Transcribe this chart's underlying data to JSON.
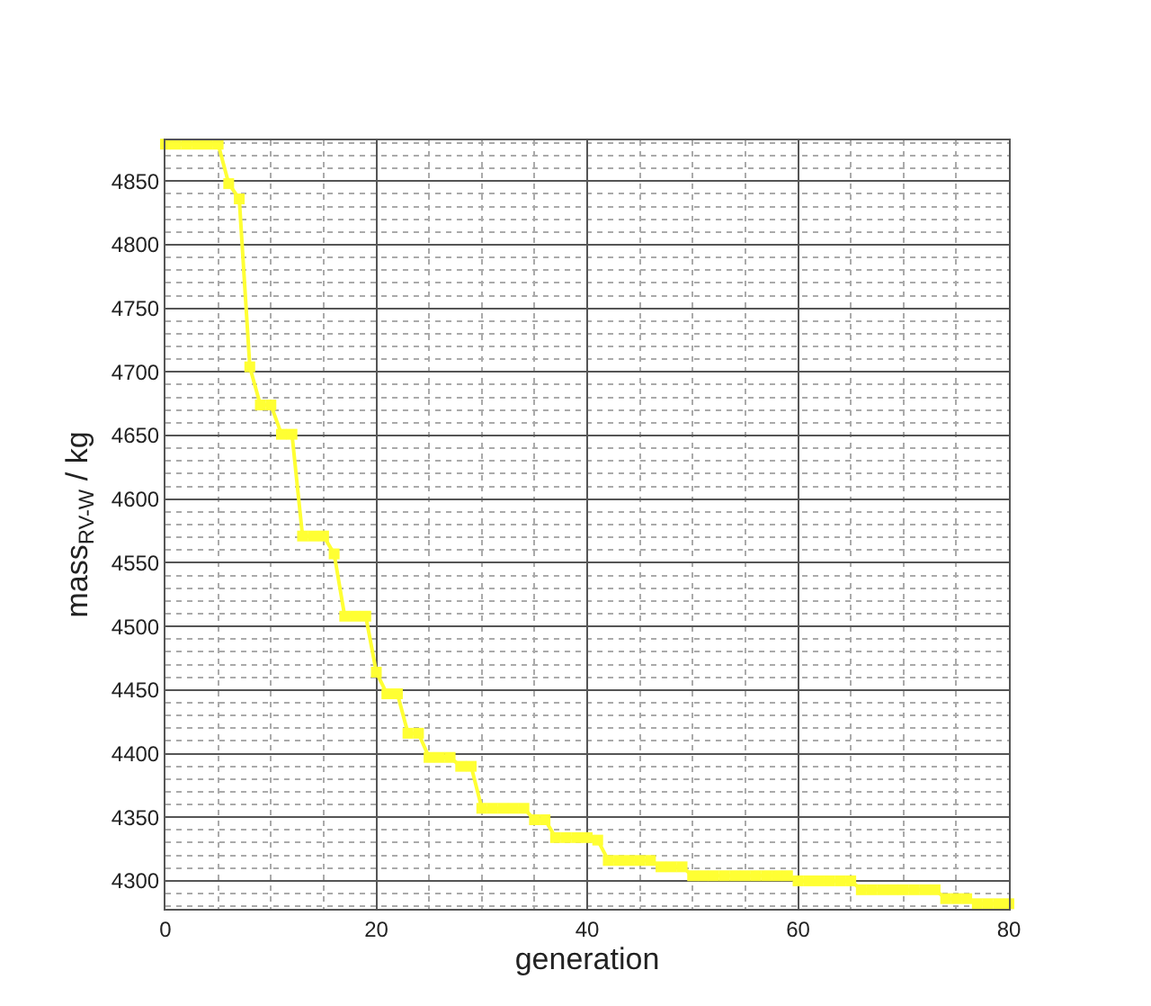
{
  "chart_data": {
    "type": "line",
    "xlabel": "generation",
    "ylabel": "mass$_{RV-W}$ / kg",
    "x": [
      0,
      1,
      2,
      3,
      4,
      5,
      6,
      7,
      8,
      9,
      10,
      11,
      12,
      13,
      14,
      15,
      16,
      17,
      18,
      19,
      20,
      21,
      22,
      23,
      24,
      25,
      26,
      27,
      28,
      29,
      30,
      31,
      32,
      33,
      34,
      35,
      36,
      37,
      38,
      39,
      40,
      41,
      42,
      43,
      44,
      45,
      46,
      47,
      48,
      49,
      50,
      51,
      52,
      53,
      54,
      55,
      56,
      57,
      58,
      59,
      60,
      61,
      62,
      63,
      64,
      65,
      66,
      67,
      68,
      69,
      70,
      71,
      72,
      73,
      74,
      75,
      76,
      77,
      78,
      79,
      80
    ],
    "series": [
      {
        "color": "#ffff33",
        "values": [
          4879,
          4879,
          4879,
          4879,
          4879,
          4879,
          4848,
          4836,
          4704,
          4674,
          4674,
          4651,
          4651,
          4571,
          4571,
          4571,
          4557,
          4508,
          4508,
          4508,
          4464,
          4447,
          4447,
          4416,
          4416,
          4397,
          4397,
          4397,
          4390,
          4390,
          4357,
          4357,
          4357,
          4357,
          4357,
          4348,
          4348,
          4334,
          4334,
          4334,
          4334,
          4332,
          4316,
          4316,
          4316,
          4316,
          4316,
          4311,
          4311,
          4311,
          4304,
          4304,
          4304,
          4304,
          4304,
          4304,
          4304,
          4304,
          4304,
          4304,
          4300,
          4300,
          4300,
          4300,
          4300,
          4300,
          4293,
          4293,
          4293,
          4293,
          4293,
          4293,
          4293,
          4293,
          4286,
          4286,
          4286,
          4282,
          4282,
          4282,
          4282
        ]
      }
    ],
    "xlim": [
      0,
      80
    ],
    "xticks": [
      0,
      20,
      40,
      60,
      80
    ],
    "ylim": [
      4278,
      4882
    ],
    "yticks": [
      4300,
      4350,
      4400,
      4450,
      4500,
      4550,
      4600,
      4650,
      4700,
      4750,
      4800,
      4850
    ],
    "grid": true,
    "marker": "square",
    "line_style": "solid"
  }
}
